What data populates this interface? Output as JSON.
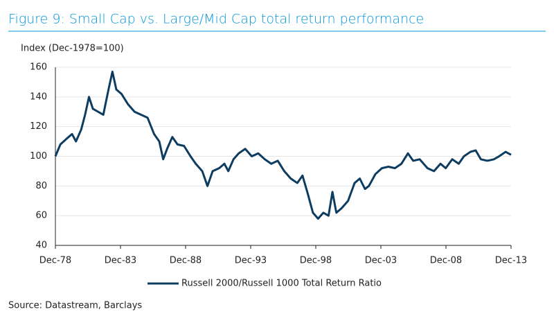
{
  "chart_data": {
    "type": "line",
    "title": "Figure 9: Small Cap vs. Large/Mid Cap total return performance",
    "y_axis_label": "Index (Dec-1978=100)",
    "source": "Source: Datastream, Barclays",
    "x": [
      1978.92,
      1979.3,
      1979.8,
      1980.2,
      1980.5,
      1980.9,
      1981.2,
      1981.5,
      1981.8,
      1982.2,
      1982.6,
      1983.0,
      1983.3,
      1983.6,
      1984.0,
      1984.5,
      1985.0,
      1985.5,
      1986.0,
      1986.5,
      1986.9,
      1987.2,
      1987.5,
      1987.9,
      1988.3,
      1988.8,
      1989.3,
      1989.7,
      1990.2,
      1990.6,
      1991.0,
      1991.5,
      1991.9,
      1992.2,
      1992.6,
      1993.0,
      1993.5,
      1994.0,
      1994.5,
      1995.0,
      1995.5,
      1996.0,
      1996.5,
      1997.0,
      1997.5,
      1997.9,
      1998.3,
      1998.7,
      1999.1,
      1999.5,
      1999.9,
      2000.2,
      2000.5,
      2000.9,
      2001.4,
      2001.9,
      2002.3,
      2002.7,
      2003.0,
      2003.5,
      2004.0,
      2004.5,
      2005.0,
      2005.5,
      2006.0,
      2006.4,
      2006.9,
      2007.5,
      2008.0,
      2008.5,
      2008.9,
      2009.4,
      2009.9,
      2010.3,
      2010.8,
      2011.2,
      2011.6,
      2012.1,
      2012.6,
      2013.0,
      2013.5,
      2013.92
    ],
    "series": [
      {
        "name": "Russell 2000/Russell 1000 Total Return Ratio",
        "color": "#0d3c61",
        "values": [
          100,
          108,
          112,
          115,
          110,
          118,
          128,
          140,
          132,
          130,
          128,
          145,
          157,
          145,
          142,
          135,
          130,
          128,
          126,
          115,
          110,
          98,
          105,
          113,
          108,
          107,
          100,
          95,
          90,
          80,
          90,
          92,
          95,
          90,
          98,
          102,
          105,
          100,
          102,
          98,
          95,
          97,
          90,
          85,
          82,
          87,
          75,
          62,
          58,
          62,
          60,
          76,
          62,
          65,
          70,
          82,
          85,
          78,
          80,
          88,
          92,
          93,
          92,
          95,
          102,
          97,
          98,
          92,
          90,
          95,
          92,
          98,
          95,
          100,
          103,
          104,
          98,
          97,
          98,
          100,
          103,
          101
        ]
      }
    ],
    "xlim": [
      1978.92,
      2013.92
    ],
    "xticks": [
      {
        "value": 1978.92,
        "label": "Dec-78"
      },
      {
        "value": 1983.92,
        "label": "Dec-83"
      },
      {
        "value": 1988.92,
        "label": "Dec-88"
      },
      {
        "value": 1993.92,
        "label": "Dec-93"
      },
      {
        "value": 1998.92,
        "label": "Dec-98"
      },
      {
        "value": 2003.92,
        "label": "Dec-03"
      },
      {
        "value": 2008.92,
        "label": "Dec-08"
      },
      {
        "value": 2013.92,
        "label": "Dec-13"
      }
    ],
    "ylim": [
      40,
      160
    ],
    "yticks": [
      40,
      60,
      80,
      100,
      120,
      140,
      160
    ],
    "grid": true
  }
}
